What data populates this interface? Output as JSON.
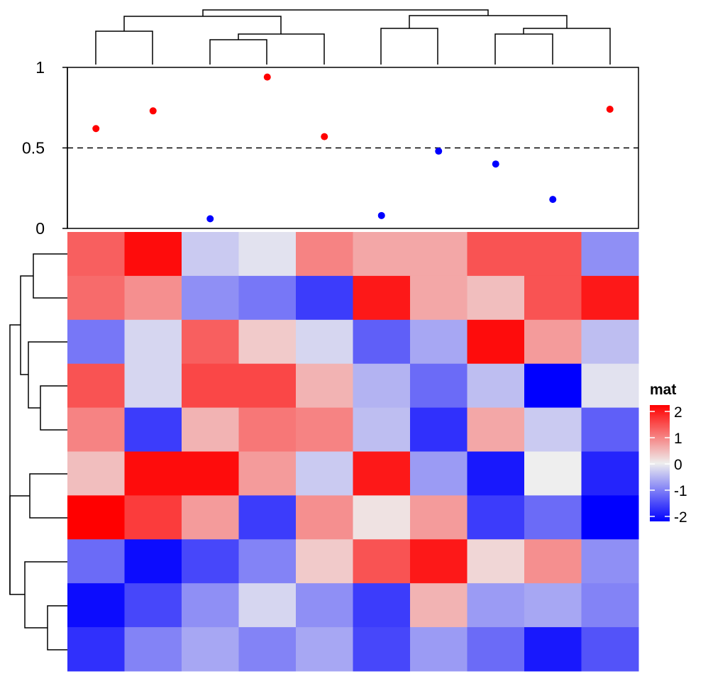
{
  "chart_data": [
    {
      "type": "scatter",
      "ylim": [
        0,
        1
      ],
      "yticks": [
        "0",
        "0.5",
        "1"
      ],
      "reference_line": 0.5,
      "colors": {
        "above": "#ff0000",
        "below": "#0000ff"
      },
      "values": [
        0.62,
        0.73,
        0.06,
        0.94,
        0.57,
        0.08,
        0.48,
        0.4,
        0.18,
        0.74
      ]
    },
    {
      "type": "heatmap",
      "legend_title": "mat",
      "legend_ticks": [
        "2",
        "1",
        "0",
        "-1",
        "-2"
      ],
      "color_scale": {
        "low": "#0000ff",
        "mid": "#eeeeee",
        "high": "#ff0000",
        "domain": [
          -2,
          0,
          2
        ]
      },
      "rows": 10,
      "columns": 10,
      "values": [
        [
          1.2,
          1.9,
          -0.3,
          -0.1,
          0.9,
          0.6,
          0.6,
          1.3,
          1.3,
          -0.8
        ],
        [
          1.1,
          0.8,
          -0.8,
          -1.0,
          -1.5,
          1.8,
          0.6,
          0.4,
          1.3,
          1.8
        ],
        [
          -1.0,
          -0.2,
          1.2,
          0.3,
          -0.2,
          -1.2,
          -0.6,
          1.9,
          0.7,
          -0.4
        ],
        [
          1.3,
          -0.2,
          1.4,
          1.4,
          0.5,
          -0.5,
          -1.1,
          -0.4,
          -2.0,
          -0.1
        ],
        [
          0.9,
          -1.5,
          0.5,
          1.0,
          0.9,
          -0.4,
          -1.6,
          0.6,
          -0.3,
          -1.2
        ],
        [
          0.4,
          1.9,
          1.9,
          0.7,
          -0.3,
          1.8,
          -0.7,
          -1.8,
          0.0,
          -1.7
        ],
        [
          2.0,
          1.5,
          0.7,
          -1.5,
          0.8,
          0.1,
          0.7,
          -1.5,
          -1.1,
          -2.0
        ],
        [
          -1.1,
          -1.9,
          -1.4,
          -0.9,
          0.3,
          1.3,
          1.8,
          0.2,
          0.8,
          -0.8
        ],
        [
          -1.9,
          -1.4,
          -0.8,
          -0.2,
          -0.8,
          -1.5,
          0.5,
          -0.7,
          -0.6,
          -0.9
        ],
        [
          -1.6,
          -0.9,
          -0.6,
          -0.9,
          -0.6,
          -1.4,
          -0.7,
          -1.1,
          -1.8,
          -1.3
        ]
      ]
    }
  ]
}
